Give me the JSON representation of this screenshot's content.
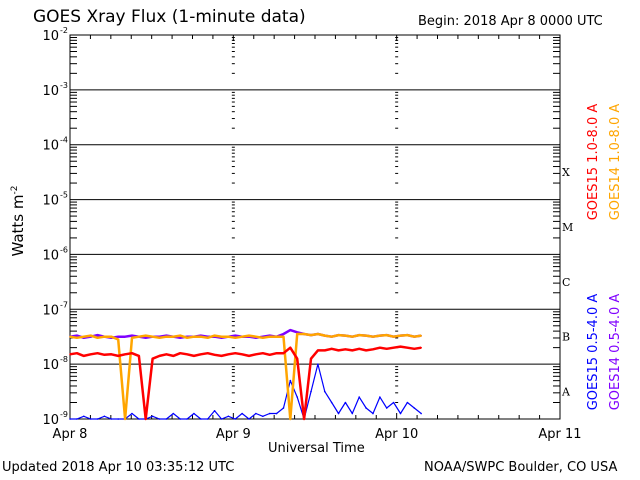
{
  "chart_data": {
    "type": "line",
    "title": "GOES Xray Flux (1-minute data)",
    "begin": "Begin:  2018 Apr 8 0000 UTC",
    "xlabel": "Universal Time",
    "ylabel": "Watts m",
    "ylabel_sup": "-2",
    "x_unit": "hours since 2018 Apr 8 0000 UTC",
    "xlim": [
      0,
      72
    ],
    "ylim_log10": [
      -9,
      -2
    ],
    "yscale": "log",
    "x_ticks": [
      {
        "h": 0,
        "label": "Apr 8"
      },
      {
        "h": 24,
        "label": "Apr 9"
      },
      {
        "h": 48,
        "label": "Apr 10"
      },
      {
        "h": 72,
        "label": "Apr 11"
      }
    ],
    "y_ticks": [
      {
        "exp": -2,
        "label": "-2"
      },
      {
        "exp": -3,
        "label": "-3"
      },
      {
        "exp": -4,
        "label": "-4"
      },
      {
        "exp": -5,
        "label": "-5"
      },
      {
        "exp": -6,
        "label": "-6"
      },
      {
        "exp": -7,
        "label": "-7"
      },
      {
        "exp": -8,
        "label": "-8"
      },
      {
        "exp": -9,
        "label": "-9"
      }
    ],
    "y_tick_base": "10",
    "flare_classes": [
      {
        "label": "X",
        "exp": -4
      },
      {
        "label": "M",
        "exp": -5
      },
      {
        "label": "C",
        "exp": -6
      },
      {
        "label": "B",
        "exp": -7
      },
      {
        "label": "A",
        "exp": -8
      }
    ],
    "grid": true,
    "series": [
      {
        "name": "GOES14 0.5-4.0 A",
        "color": "#7f00ff",
        "x_end": 51.6,
        "log10_values": [
          -7.5,
          -7.48,
          -7.52,
          -7.5,
          -7.47,
          -7.5,
          -7.52,
          -7.5,
          -7.5,
          -7.48,
          -7.5,
          -7.52,
          -7.5,
          -7.5,
          -7.48,
          -7.5,
          -7.52,
          -7.5,
          -7.5,
          -7.48,
          -7.5,
          -7.5,
          -7.52,
          -7.5,
          -7.48,
          -7.5,
          -7.5,
          -7.52,
          -7.5,
          -7.48,
          -7.5,
          -7.45,
          -7.38,
          -7.42,
          -7.45,
          -7.47,
          -7.45,
          -7.48,
          -7.5,
          -7.47,
          -7.48,
          -7.5,
          -7.47,
          -7.48,
          -7.5,
          -7.48,
          -7.47,
          -7.5,
          -7.48,
          -7.47,
          -7.5,
          -7.48
        ]
      },
      {
        "name": "GOES15 0.5-4.0 A",
        "color": "#0000ff",
        "x_end": 51.6,
        "log10_values": [
          -9.0,
          -9.0,
          -8.95,
          -9.0,
          -9.0,
          -8.95,
          -9.0,
          -9.0,
          -9.0,
          -8.9,
          -9.0,
          -9.0,
          -8.95,
          -9.0,
          -9.0,
          -8.9,
          -9.0,
          -9.0,
          -8.9,
          -9.0,
          -9.0,
          -8.85,
          -9.0,
          -8.95,
          -9.0,
          -8.9,
          -9.0,
          -8.9,
          -8.95,
          -8.9,
          -8.9,
          -8.8,
          -8.3,
          -8.6,
          -9.0,
          -8.5,
          -8.0,
          -8.5,
          -8.7,
          -8.9,
          -8.7,
          -8.9,
          -8.6,
          -8.8,
          -8.9,
          -8.6,
          -8.8,
          -8.7,
          -8.9,
          -8.7,
          -8.8,
          -8.9
        ]
      },
      {
        "name": "GOES14 1.0-8.0 A",
        "color": "#ffa500",
        "x_end": 51.6,
        "log10_values": [
          -7.5,
          -7.52,
          -7.5,
          -7.48,
          -7.52,
          -7.5,
          -7.5,
          -7.55,
          -9.0,
          -7.52,
          -7.5,
          -7.48,
          -7.5,
          -7.52,
          -7.5,
          -7.5,
          -7.48,
          -7.52,
          -7.5,
          -7.5,
          -7.52,
          -7.48,
          -7.5,
          -7.5,
          -7.52,
          -7.5,
          -7.48,
          -7.5,
          -7.52,
          -7.5,
          -7.5,
          -7.5,
          -9.0,
          -7.45,
          -7.45,
          -7.47,
          -7.45,
          -7.48,
          -7.5,
          -7.47,
          -7.48,
          -7.5,
          -7.47,
          -7.48,
          -7.5,
          -7.48,
          -7.47,
          -7.5,
          -7.48,
          -7.47,
          -7.5,
          -7.48
        ]
      },
      {
        "name": "GOES15 1.0-8.0 A",
        "color": "#ff0000",
        "x_end": 51.6,
        "log10_values": [
          -7.82,
          -7.8,
          -7.85,
          -7.82,
          -7.8,
          -7.83,
          -7.82,
          -7.85,
          -7.82,
          -7.8,
          -7.85,
          -9.0,
          -7.9,
          -7.85,
          -7.82,
          -7.85,
          -7.8,
          -7.82,
          -7.85,
          -7.82,
          -7.8,
          -7.83,
          -7.85,
          -7.82,
          -7.8,
          -7.82,
          -7.85,
          -7.82,
          -7.8,
          -7.83,
          -7.8,
          -7.8,
          -7.7,
          -7.9,
          -9.0,
          -7.9,
          -7.75,
          -7.75,
          -7.72,
          -7.75,
          -7.73,
          -7.75,
          -7.72,
          -7.75,
          -7.73,
          -7.7,
          -7.72,
          -7.7,
          -7.68,
          -7.7,
          -7.72,
          -7.7
        ]
      }
    ],
    "legend_right": [
      "GOES15 1.0-8.0 A",
      "GOES14 1.0-8.0 A"
    ],
    "legend_right_lower": [
      "GOES15 0.5-4.0 A",
      "GOES14 0.5-4.0 A"
    ],
    "legend_placement": "right"
  },
  "footer": {
    "updated": "Updated 2018 Apr 10 03:35:12 UTC",
    "source": "NOAA/SWPC Boulder, CO USA"
  }
}
